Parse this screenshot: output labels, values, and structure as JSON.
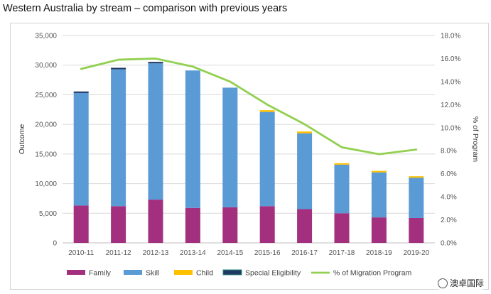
{
  "page_title": "Western Australia by stream – comparison with previous years",
  "watermark": "澳卓国际",
  "chart_data": {
    "type": "bar",
    "stacked": true,
    "xlabel": "",
    "ylabel": "Outcome",
    "y2label": "% of Program",
    "ylim": [
      0,
      35000
    ],
    "yticks": [
      "0",
      "5,000",
      "10,000",
      "15,000",
      "20,000",
      "25,000",
      "30,000",
      "35,000"
    ],
    "y2lim": [
      0,
      18
    ],
    "y2ticks": [
      "0.0%",
      "2.0%",
      "4.0%",
      "6.0%",
      "8.0%",
      "10.0%",
      "12.0%",
      "14.0%",
      "16.0%",
      "18.0%"
    ],
    "grid": true,
    "legend_position": "bottom",
    "categories": [
      "2010-11",
      "2011-12",
      "2012-13",
      "2013-14",
      "2014-15",
      "2015-16",
      "2016-17",
      "2017-18",
      "2018-19",
      "2019-20"
    ],
    "series": [
      {
        "name": "Family",
        "color": "#a3307f",
        "values": [
          6300,
          6200,
          7300,
          5900,
          6000,
          6200,
          5700,
          5000,
          4300,
          4200
        ]
      },
      {
        "name": "Skill",
        "color": "#5b9bd5",
        "values": [
          19000,
          23100,
          23000,
          23200,
          20200,
          15900,
          12800,
          8200,
          7600,
          6800
        ]
      },
      {
        "name": "Child",
        "color": "#ffc000",
        "values": [
          0,
          0,
          0,
          0,
          0,
          300,
          300,
          250,
          250,
          250
        ]
      },
      {
        "name": "Special Eligibility",
        "color": "#1f3864",
        "values": [
          250,
          250,
          250,
          0,
          0,
          0,
          0,
          0,
          0,
          0
        ]
      }
    ],
    "line_series": {
      "name": "% of Migration Program",
      "color": "#92d050",
      "axis": "right",
      "values": [
        15.1,
        15.9,
        16.0,
        15.3,
        14.0,
        12.0,
        10.3,
        8.3,
        7.7,
        8.1
      ]
    }
  }
}
